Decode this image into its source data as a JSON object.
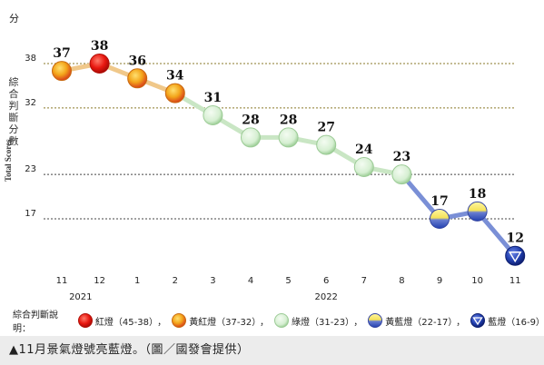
{
  "chart_data": {
    "type": "line",
    "ylabel_unit": "分",
    "ylabel_zh": "綜合判斷分數",
    "ylabel_en": "Total Scores",
    "yticks": [
      17,
      23,
      32,
      38
    ],
    "ylim": [
      9,
      41
    ],
    "categories": [
      "11",
      "12",
      "1",
      "2",
      "3",
      "4",
      "5",
      "6",
      "7",
      "8",
      "9",
      "10",
      "11"
    ],
    "year_labels": [
      {
        "text": "2021",
        "at": 0.5
      },
      {
        "text": "2022",
        "at": 7
      }
    ],
    "values": [
      37,
      38,
      36,
      34,
      31,
      28,
      28,
      27,
      24,
      23,
      17,
      18,
      12
    ],
    "signals": [
      "yellow-red",
      "red",
      "yellow-red",
      "yellow-red",
      "green",
      "green",
      "green",
      "green",
      "green",
      "green",
      "yellow-blue",
      "yellow-blue",
      "blue"
    ],
    "grid": "dotted horizontal at ticks"
  },
  "legend": {
    "title": "綜合判斷說明：",
    "items": [
      {
        "key": "red",
        "label": "紅燈（45-38）"
      },
      {
        "key": "yellow-red",
        "label": "黃紅燈（37-32）"
      },
      {
        "key": "green",
        "label": "綠燈（31-23）"
      },
      {
        "key": "yellow-blue",
        "label": "黃藍燈（22-17）"
      },
      {
        "key": "blue",
        "label": "藍燈（16-9）"
      }
    ],
    "separator": "，"
  },
  "caption": "▲11月景氣燈號亮藍燈。（圖／國發會提供）",
  "colors": {
    "red": "#e8170f",
    "yellow-red": "#f3a51a",
    "green": "#d6efd2",
    "yellow-blue": "#f4e25a",
    "blue": "#2240b0",
    "line": "#f0c88a",
    "line_green": "#c9e6c4",
    "line_blue": "#7a8fd6"
  }
}
